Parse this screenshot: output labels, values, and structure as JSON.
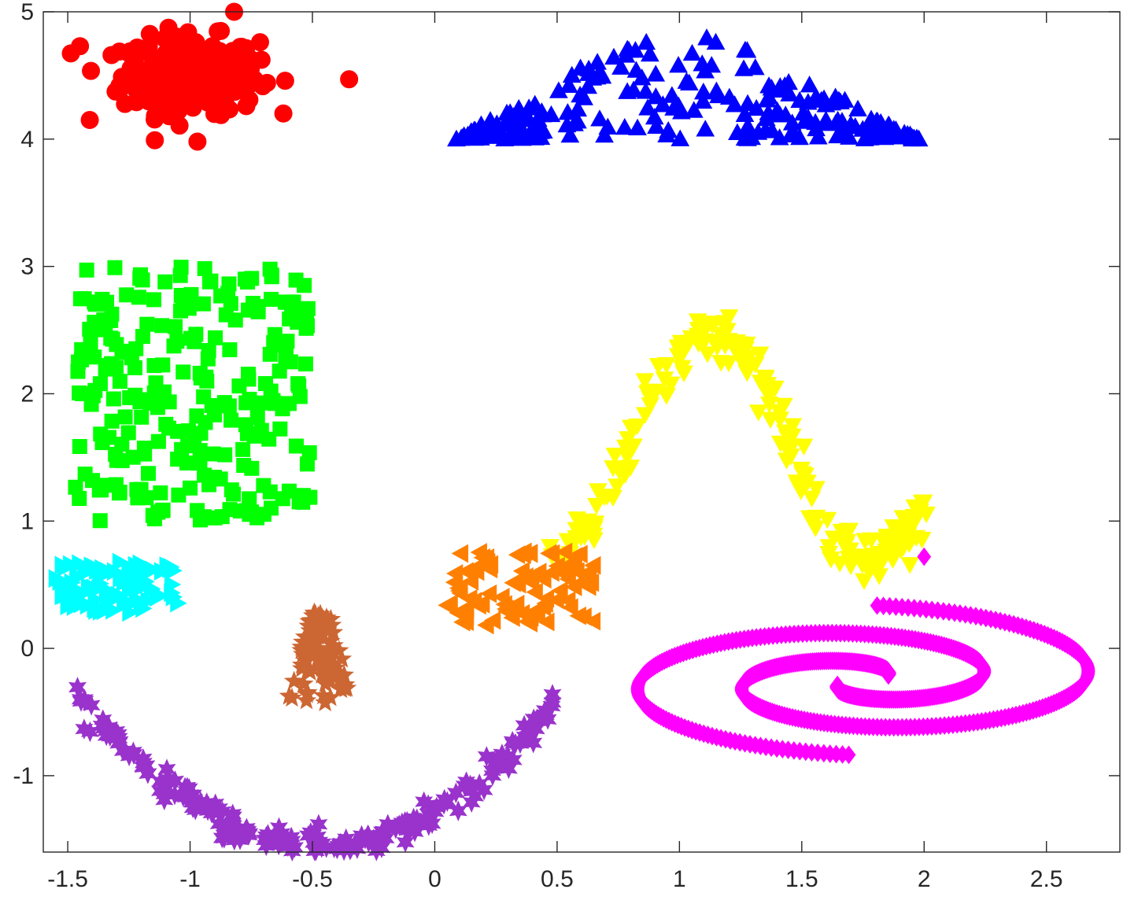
{
  "chart_data": {
    "type": "scatter",
    "title": "",
    "xlabel": "",
    "ylabel": "",
    "xlim": [
      -1.6,
      2.8
    ],
    "ylim": [
      -1.6,
      5.0
    ],
    "grid": false,
    "box": true,
    "x_ticks": [
      -1.5,
      -1,
      -0.5,
      0,
      0.5,
      1,
      1.5,
      2,
      2.5
    ],
    "x_tick_labels": [
      "-1.5",
      "-1",
      "-0.5",
      "0",
      "0.5",
      "1",
      "1.5",
      "2",
      "2.5"
    ],
    "y_ticks": [
      -1,
      0,
      1,
      2,
      3,
      4,
      5
    ],
    "y_tick_labels": [
      "-1",
      "0",
      "1",
      "2",
      "3",
      "4",
      "5"
    ],
    "series": [
      {
        "marker": "circle",
        "color": "#ff0000",
        "shape": "gaussian blob",
        "center": [
          -1.0,
          4.5
        ],
        "spread": [
          0.14,
          0.15
        ],
        "count": 280,
        "outliers": [
          [
            -1.45,
            4.73
          ],
          [
            -1.41,
            4.15
          ],
          [
            -0.35,
            4.47
          ],
          [
            -0.82,
            5.0
          ],
          [
            -0.97,
            3.98
          ]
        ]
      },
      {
        "marker": "triangle-up",
        "color": "#0000ff",
        "shape": "triangle",
        "x_range": [
          0.08,
          1.98
        ],
        "apex": [
          1.0,
          5.0
        ],
        "base_y": 4.0,
        "count": 220
      },
      {
        "marker": "square",
        "color": "#00ff00",
        "shape": "uniform rectangle",
        "x_range": [
          -1.47,
          -0.5
        ],
        "y_range": [
          1.0,
          3.0
        ],
        "count": 250
      },
      {
        "marker": "triangle-down",
        "color": "#ffff00",
        "shape": "sine wave",
        "x_range": [
          0.5,
          2.0
        ],
        "curve": "y = 1.6 - 0.9*sin(pi*(x-0.15)/0.65)",
        "noise": 0.08,
        "count": 220
      },
      {
        "marker": "triangle-right",
        "color": "#00ffff",
        "shape": "small cluster",
        "x_range": [
          -1.55,
          -1.05
        ],
        "y_range": [
          0.28,
          0.68
        ],
        "count": 90
      },
      {
        "marker": "triangle-left",
        "color": "#ff8000",
        "shape": "small cluster",
        "x_range": [
          0.05,
          0.65
        ],
        "y_range": [
          0.18,
          0.76
        ],
        "count": 90
      },
      {
        "marker": "star",
        "color": "#cc6633",
        "shape": "bell / pyramid",
        "x_range": [
          -0.62,
          -0.32
        ],
        "y_range": [
          -0.45,
          0.28
        ],
        "count": 90
      },
      {
        "marker": "hexagram",
        "color": "#9933cc",
        "shape": "parabola",
        "x_range": [
          -1.45,
          0.5
        ],
        "curve": "y = -1.55 + 1.15*((x+0.47)/0.97)^2",
        "noise": 0.05,
        "count": 220
      },
      {
        "marker": "diamond",
        "color": "#ff00ff",
        "shape": "double spiral",
        "center": [
          1.75,
          -0.25
        ],
        "count": 620,
        "extra_point": [
          2.0,
          0.72
        ]
      }
    ]
  }
}
